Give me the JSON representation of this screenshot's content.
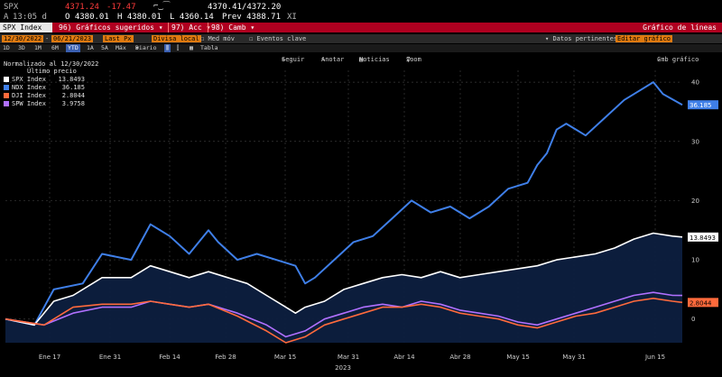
{
  "header": {
    "ticker": "SPX",
    "last": "4371.24",
    "change": "-17.47",
    "bid_ask": "4370.41/4372.20",
    "row2_a": "A",
    "time": "13:05 d",
    "open": "O 4380.01",
    "high": "H 4380.01",
    "low": "L 4360.14",
    "prev": "Prev 4388.71",
    "xi": "XI"
  },
  "command_bar": {
    "security": "SPX Index",
    "suggested": "Gráficos sugeridos",
    "actions": "Acc",
    "change": "Camb",
    "chart_type": "Gráfico de líneas"
  },
  "options_bar": {
    "start_date": "12/30/2022",
    "end_date": "06/21/2023",
    "last_px": "Last Px",
    "local_ccy": "Divisa local",
    "avg": "Med móv",
    "events": "Eventos clave",
    "relevant_data": "Datos pertinentes",
    "edit_chart": "Editar gráfico"
  },
  "period_bar": {
    "periods": [
      "1D",
      "3D",
      "1M",
      "6M",
      "YTD",
      "1A",
      "5A",
      "Máx"
    ],
    "selected": "YTD",
    "frequency": "Diario",
    "table": "Tabla"
  },
  "chart_toolbar": {
    "follow": "Seguir",
    "annotate": "Anotar",
    "news": "Noticias",
    "zoom": "Zoom",
    "change_chart": "Cmb gráfico"
  },
  "legend": {
    "normalized": "Normalizado al 12/30/2022",
    "last_price": "Último precio",
    "items": [
      {
        "name": "SPX Index",
        "value": "13.8493",
        "color": "#ffffff"
      },
      {
        "name": "NDX Index",
        "value": "36.185",
        "color": "#3f7fe8"
      },
      {
        "name": "DJI Index",
        "value": "2.8044",
        "color": "#ff6a3c"
      },
      {
        "name": "SPW Index",
        "value": "3.9758",
        "color": "#b070ff"
      }
    ]
  },
  "chart_data": {
    "type": "line",
    "x_labels": [
      "Ene 17",
      "Ene 31",
      "Feb 14",
      "Feb 28",
      "Mar 15",
      "Mar 31",
      "Abr 14",
      "Abr 28",
      "May 15",
      "May 31",
      "Jun 15"
    ],
    "x_year": "2023",
    "y_ticks": [
      0,
      10,
      20,
      30,
      40
    ],
    "ylim": [
      -4,
      42
    ],
    "x_count": 116,
    "end_labels": [
      "36.185",
      "13.8493",
      "2.8044"
    ],
    "series": [
      {
        "name": "NDX Index",
        "color": "#3f7fe8",
        "points": [
          [
            0,
            0
          ],
          [
            6,
            -1
          ],
          [
            10,
            5
          ],
          [
            16,
            6
          ],
          [
            20,
            11
          ],
          [
            26,
            10
          ],
          [
            30,
            16
          ],
          [
            34,
            14
          ],
          [
            38,
            11
          ],
          [
            42,
            15
          ],
          [
            44,
            13
          ],
          [
            48,
            10
          ],
          [
            52,
            11
          ],
          [
            56,
            10
          ],
          [
            60,
            9
          ],
          [
            62,
            6
          ],
          [
            64,
            7
          ],
          [
            68,
            10
          ],
          [
            72,
            13
          ],
          [
            76,
            14
          ],
          [
            80,
            17
          ],
          [
            84,
            20
          ],
          [
            88,
            18
          ],
          [
            92,
            19
          ],
          [
            96,
            17
          ],
          [
            100,
            19
          ],
          [
            104,
            22
          ],
          [
            108,
            23
          ],
          [
            110,
            26
          ],
          [
            112,
            28
          ],
          [
            114,
            32
          ],
          [
            116,
            33
          ],
          [
            120,
            31
          ],
          [
            124,
            34
          ],
          [
            128,
            37
          ],
          [
            130,
            38
          ],
          [
            134,
            40
          ],
          [
            136,
            38
          ],
          [
            140,
            36.185
          ]
        ]
      },
      {
        "name": "SPX Index",
        "color": "#ffffff",
        "points": [
          [
            0,
            0
          ],
          [
            6,
            -1
          ],
          [
            10,
            3
          ],
          [
            14,
            4
          ],
          [
            20,
            7
          ],
          [
            26,
            7
          ],
          [
            30,
            9
          ],
          [
            34,
            8
          ],
          [
            38,
            7
          ],
          [
            42,
            8
          ],
          [
            46,
            7
          ],
          [
            50,
            6
          ],
          [
            54,
            4
          ],
          [
            58,
            2
          ],
          [
            60,
            1
          ],
          [
            62,
            2
          ],
          [
            66,
            3
          ],
          [
            70,
            5
          ],
          [
            74,
            6
          ],
          [
            78,
            7
          ],
          [
            82,
            7.5
          ],
          [
            86,
            7
          ],
          [
            90,
            8
          ],
          [
            94,
            7
          ],
          [
            98,
            7.5
          ],
          [
            102,
            8
          ],
          [
            106,
            8.5
          ],
          [
            110,
            9
          ],
          [
            114,
            10
          ],
          [
            118,
            10.5
          ],
          [
            122,
            11
          ],
          [
            126,
            12
          ],
          [
            130,
            13.5
          ],
          [
            134,
            14.5
          ],
          [
            138,
            14
          ],
          [
            140,
            13.8493
          ]
        ]
      },
      {
        "name": "SPW Index",
        "color": "#b070ff",
        "points": [
          [
            0,
            0
          ],
          [
            8,
            -1
          ],
          [
            14,
            1
          ],
          [
            20,
            2
          ],
          [
            26,
            2
          ],
          [
            30,
            3
          ],
          [
            34,
            2.5
          ],
          [
            38,
            2
          ],
          [
            42,
            2.5
          ],
          [
            48,
            1
          ],
          [
            54,
            -1
          ],
          [
            58,
            -3
          ],
          [
            62,
            -2
          ],
          [
            66,
            0
          ],
          [
            70,
            1
          ],
          [
            74,
            2
          ],
          [
            78,
            2.5
          ],
          [
            82,
            2
          ],
          [
            86,
            3
          ],
          [
            90,
            2.5
          ],
          [
            94,
            1.5
          ],
          [
            98,
            1
          ],
          [
            102,
            0.5
          ],
          [
            106,
            -0.5
          ],
          [
            110,
            -1
          ],
          [
            114,
            0
          ],
          [
            118,
            1
          ],
          [
            122,
            2
          ],
          [
            126,
            3
          ],
          [
            130,
            4
          ],
          [
            134,
            4.5
          ],
          [
            138,
            4
          ],
          [
            140,
            3.9758
          ]
        ]
      },
      {
        "name": "DJI Index",
        "color": "#ff6a3c",
        "points": [
          [
            0,
            0
          ],
          [
            8,
            -1
          ],
          [
            14,
            2
          ],
          [
            20,
            2.5
          ],
          [
            26,
            2.5
          ],
          [
            30,
            3
          ],
          [
            34,
            2.5
          ],
          [
            38,
            2
          ],
          [
            42,
            2.5
          ],
          [
            48,
            0.5
          ],
          [
            54,
            -2
          ],
          [
            58,
            -4
          ],
          [
            62,
            -3
          ],
          [
            66,
            -1
          ],
          [
            70,
            0
          ],
          [
            74,
            1
          ],
          [
            78,
            2
          ],
          [
            82,
            2
          ],
          [
            86,
            2.5
          ],
          [
            90,
            2
          ],
          [
            94,
            1
          ],
          [
            98,
            0.5
          ],
          [
            102,
            0
          ],
          [
            106,
            -1
          ],
          [
            110,
            -1.5
          ],
          [
            114,
            -0.5
          ],
          [
            118,
            0.5
          ],
          [
            122,
            1
          ],
          [
            126,
            2
          ],
          [
            130,
            3
          ],
          [
            134,
            3.5
          ],
          [
            138,
            3
          ],
          [
            140,
            2.8044
          ]
        ]
      }
    ]
  },
  "colors": {
    "background": "#000000",
    "command_bar": "#b00020",
    "field": "#e07a10",
    "area_fill": "#0d1f3f"
  }
}
